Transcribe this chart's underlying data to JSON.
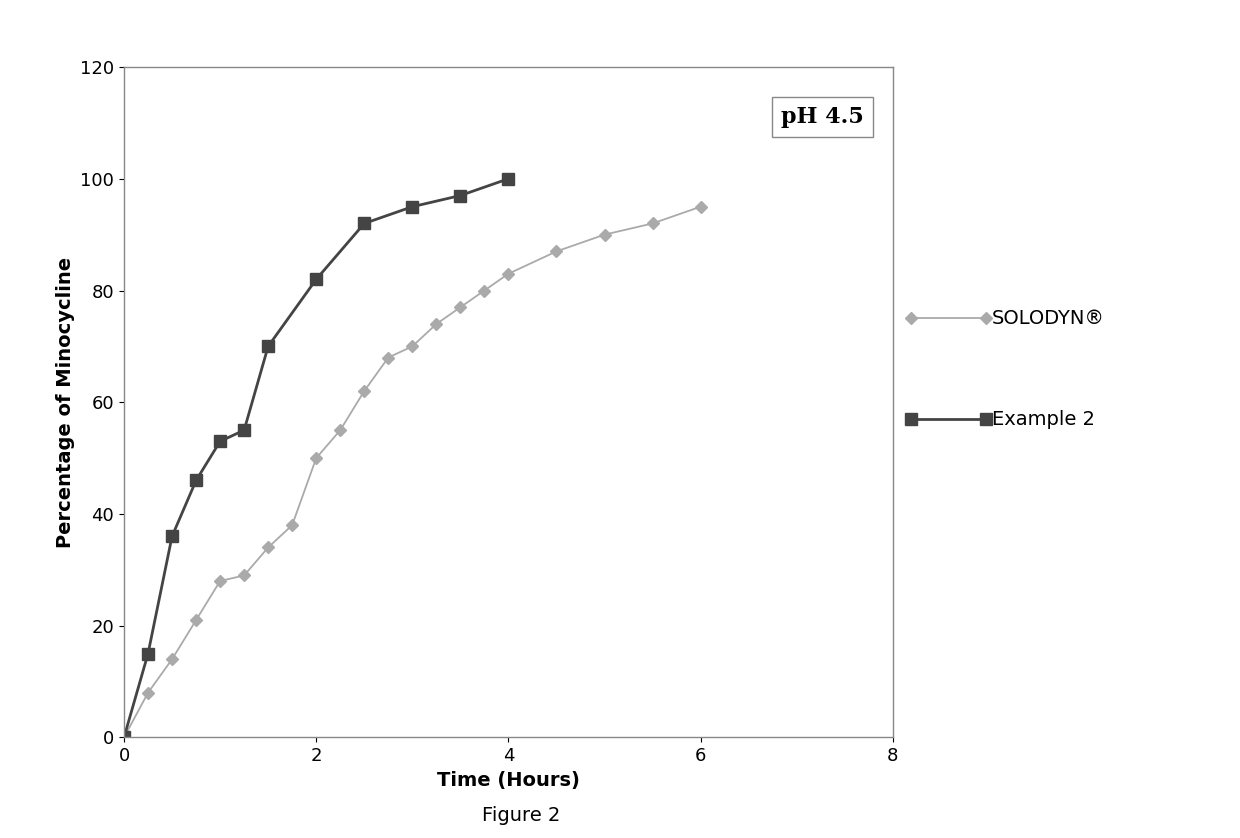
{
  "title_annotation": "pH 4.5",
  "xlabel": "Time (Hours)",
  "ylabel": "Percentage of Minocycline",
  "figure_caption": "Figure 2",
  "xlim": [
    0,
    8
  ],
  "ylim": [
    0,
    120
  ],
  "xticks": [
    0,
    2,
    4,
    6,
    8
  ],
  "yticks": [
    0,
    20,
    40,
    60,
    80,
    100,
    120
  ],
  "solodyn_x": [
    0,
    0.25,
    0.5,
    0.75,
    1.0,
    1.25,
    1.5,
    1.75,
    2.0,
    2.25,
    2.5,
    2.75,
    3.0,
    3.25,
    3.5,
    3.75,
    4.0,
    4.5,
    5.0,
    5.5,
    6.0
  ],
  "solodyn_y": [
    0,
    8,
    14,
    21,
    28,
    29,
    34,
    38,
    50,
    55,
    62,
    68,
    70,
    74,
    77,
    80,
    83,
    87,
    90,
    92,
    95
  ],
  "example2_x": [
    0,
    0.25,
    0.5,
    0.75,
    1.0,
    1.25,
    1.5,
    2.0,
    2.5,
    3.0,
    3.5,
    4.0
  ],
  "example2_y": [
    0,
    15,
    36,
    46,
    53,
    55,
    70,
    82,
    92,
    95,
    97,
    100
  ],
  "solodyn_color": "#aaaaaa",
  "example2_color": "#444444",
  "legend_solodyn": "SOLODYN®",
  "legend_example2": "Example 2",
  "title_fontsize": 16,
  "label_fontsize": 14,
  "tick_fontsize": 13,
  "legend_fontsize": 14,
  "caption_fontsize": 14
}
